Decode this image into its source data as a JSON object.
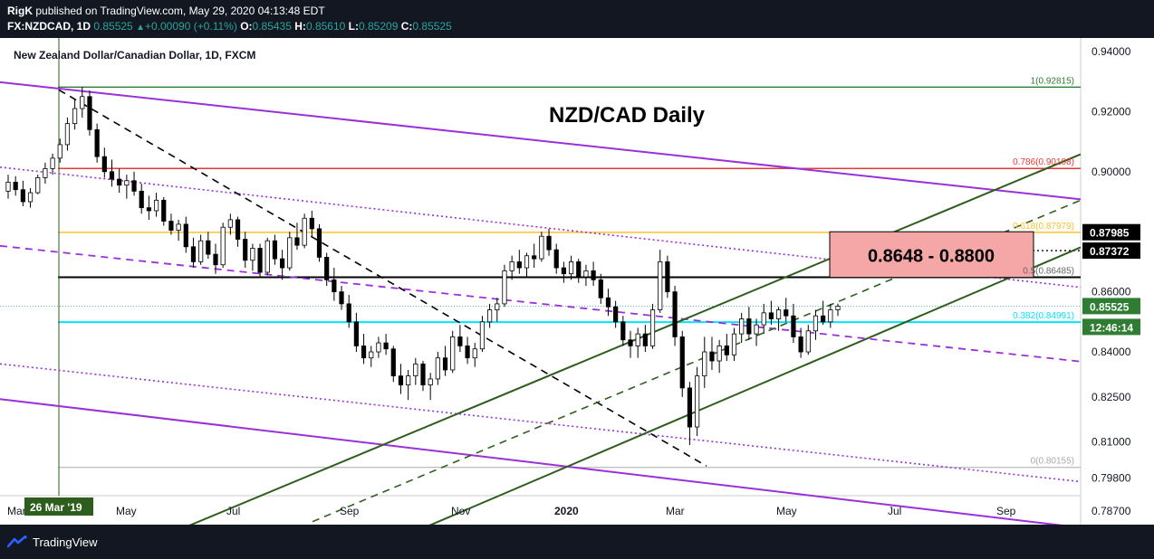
{
  "header": {
    "author": "RigK",
    "published": "published on TradingView.com, May 29, 2020 04:13:48 EDT",
    "symbol": "FX:NZDCAD, 1D",
    "last": "0.85525",
    "change": "+0.00090 (+0.11%)",
    "o_label": "O:",
    "o_value": "0.85435",
    "h_label": "H:",
    "h_value": "0.85610",
    "l_label": "L:",
    "l_value": "0.85209",
    "c_label": "C:",
    "c_value": "0.85525"
  },
  "footer": {
    "brand": "TradingView"
  },
  "colors": {
    "background": "#ffffff",
    "frame": "#131722",
    "green_channel": "#2e5e1e",
    "purple_channel": "#9b30d9",
    "fib_top": "#2e7d32",
    "fib_786": "#e53935",
    "fib_618": "#fbc02d",
    "fib_382": "#00e5ff",
    "zone": "#f5a6a6"
  },
  "chart_data": {
    "type": "candlestick",
    "title": "New Zealand Dollar/Canadian Dollar, 1D, FXCM",
    "annotation": "NZD/CAD Daily",
    "zone_label": "0.8648 - 0.8800",
    "ylim": [
      0.7825,
      0.9445
    ],
    "y_ticks": [
      "0.94000",
      "0.92000",
      "0.90000",
      "0.87985",
      "0.87372",
      "0.86000",
      "0.85525",
      "0.84000",
      "0.82500",
      "0.81000",
      "0.79800",
      "0.78700"
    ],
    "y_tick_values": [
      0.94,
      0.92,
      0.9,
      0.87985,
      0.87372,
      0.86,
      0.85525,
      0.84,
      0.825,
      0.81,
      0.798,
      0.787
    ],
    "x_ticks": [
      "Mar",
      "26 Mar '19",
      "May",
      "Jul",
      "Sep",
      "Nov",
      "2020",
      "Mar",
      "May",
      "Jul",
      "Sep"
    ],
    "price_label": "0.85525",
    "countdown_label": "12:46:14",
    "fib_levels": [
      {
        "label": "1(0.92815)",
        "value": 0.92815
      },
      {
        "label": "0.786(0.90108)",
        "value": 0.90108
      },
      {
        "label": "0.618(0.87979)",
        "value": 0.87979
      },
      {
        "label": "0.5(0.86485)",
        "value": 0.86485
      },
      {
        "label": "0.382(0.84991)",
        "value": 0.84991
      },
      {
        "label": "0(0.80155)",
        "value": 0.80155
      }
    ],
    "series": [
      {
        "values": [
          [
            0.8935,
            0.899,
            0.891,
            0.8965
          ],
          [
            0.8965,
            0.8985,
            0.892,
            0.894
          ],
          [
            0.894,
            0.897,
            0.8885,
            0.89
          ],
          [
            0.89,
            0.8945,
            0.888,
            0.893
          ],
          [
            0.893,
            0.899,
            0.8925,
            0.898
          ],
          [
            0.898,
            0.903,
            0.896,
            0.901
          ],
          [
            0.901,
            0.906,
            0.899,
            0.9045
          ],
          [
            0.9045,
            0.911,
            0.903,
            0.909
          ],
          [
            0.909,
            0.918,
            0.907,
            0.916
          ],
          [
            0.916,
            0.924,
            0.914,
            0.921
          ],
          [
            0.921,
            0.9282,
            0.918,
            0.925
          ],
          [
            0.925,
            0.927,
            0.912,
            0.914
          ],
          [
            0.914,
            0.916,
            0.903,
            0.905
          ],
          [
            0.905,
            0.908,
            0.898,
            0.9
          ],
          [
            0.9,
            0.904,
            0.895,
            0.8975
          ],
          [
            0.8975,
            0.901,
            0.893,
            0.8955
          ],
          [
            0.8955,
            0.899,
            0.891,
            0.897
          ],
          [
            0.897,
            0.9,
            0.892,
            0.8935
          ],
          [
            0.8935,
            0.896,
            0.886,
            0.888
          ],
          [
            0.888,
            0.892,
            0.884,
            0.887
          ],
          [
            0.887,
            0.893,
            0.885,
            0.8905
          ],
          [
            0.8905,
            0.8915,
            0.882,
            0.8835
          ],
          [
            0.8835,
            0.886,
            0.879,
            0.8805
          ],
          [
            0.8805,
            0.884,
            0.877,
            0.8825
          ],
          [
            0.8825,
            0.885,
            0.873,
            0.875
          ],
          [
            0.875,
            0.878,
            0.868,
            0.87
          ],
          [
            0.87,
            0.879,
            0.869,
            0.877
          ],
          [
            0.877,
            0.88,
            0.871,
            0.8725
          ],
          [
            0.8725,
            0.876,
            0.866,
            0.869
          ],
          [
            0.869,
            0.883,
            0.868,
            0.8815
          ],
          [
            0.8815,
            0.886,
            0.879,
            0.884
          ],
          [
            0.884,
            0.885,
            0.875,
            0.8775
          ],
          [
            0.8775,
            0.88,
            0.868,
            0.8705
          ],
          [
            0.8705,
            0.876,
            0.867,
            0.8745
          ],
          [
            0.8745,
            0.876,
            0.865,
            0.8665
          ],
          [
            0.8665,
            0.878,
            0.8655,
            0.877
          ],
          [
            0.877,
            0.879,
            0.869,
            0.871
          ],
          [
            0.871,
            0.874,
            0.864,
            0.868
          ],
          [
            0.868,
            0.88,
            0.867,
            0.878
          ],
          [
            0.878,
            0.883,
            0.874,
            0.8755
          ],
          [
            0.8755,
            0.886,
            0.8745,
            0.8845
          ],
          [
            0.8845,
            0.887,
            0.878,
            0.881
          ],
          [
            0.881,
            0.8825,
            0.87,
            0.8715
          ],
          [
            0.8715,
            0.873,
            0.862,
            0.864
          ],
          [
            0.864,
            0.868,
            0.857,
            0.86
          ],
          [
            0.86,
            0.862,
            0.854,
            0.856
          ],
          [
            0.856,
            0.859,
            0.848,
            0.85
          ],
          [
            0.85,
            0.853,
            0.84,
            0.842
          ],
          [
            0.842,
            0.846,
            0.836,
            0.838
          ],
          [
            0.838,
            0.842,
            0.835,
            0.84
          ],
          [
            0.84,
            0.845,
            0.838,
            0.843
          ],
          [
            0.843,
            0.846,
            0.839,
            0.841
          ],
          [
            0.841,
            0.842,
            0.83,
            0.832
          ],
          [
            0.832,
            0.836,
            0.826,
            0.829
          ],
          [
            0.829,
            0.834,
            0.824,
            0.832
          ],
          [
            0.832,
            0.838,
            0.829,
            0.836
          ],
          [
            0.836,
            0.837,
            0.827,
            0.829
          ],
          [
            0.829,
            0.833,
            0.824,
            0.831
          ],
          [
            0.831,
            0.84,
            0.829,
            0.838
          ],
          [
            0.838,
            0.842,
            0.832,
            0.834
          ],
          [
            0.834,
            0.847,
            0.833,
            0.845
          ],
          [
            0.845,
            0.849,
            0.84,
            0.842
          ],
          [
            0.842,
            0.845,
            0.836,
            0.838
          ],
          [
            0.838,
            0.843,
            0.835,
            0.841
          ],
          [
            0.841,
            0.852,
            0.84,
            0.85
          ],
          [
            0.85,
            0.856,
            0.848,
            0.854
          ],
          [
            0.854,
            0.858,
            0.85,
            0.856
          ],
          [
            0.856,
            0.869,
            0.855,
            0.867
          ],
          [
            0.867,
            0.872,
            0.864,
            0.87
          ],
          [
            0.87,
            0.874,
            0.866,
            0.868
          ],
          [
            0.868,
            0.873,
            0.865,
            0.872
          ],
          [
            0.872,
            0.876,
            0.868,
            0.871
          ],
          [
            0.871,
            0.88,
            0.87,
            0.8785
          ],
          [
            0.8785,
            0.881,
            0.872,
            0.874
          ],
          [
            0.874,
            0.876,
            0.866,
            0.868
          ],
          [
            0.868,
            0.87,
            0.863,
            0.866
          ],
          [
            0.866,
            0.872,
            0.864,
            0.87
          ],
          [
            0.87,
            0.871,
            0.863,
            0.865
          ],
          [
            0.865,
            0.869,
            0.862,
            0.867
          ],
          [
            0.867,
            0.87,
            0.862,
            0.864
          ],
          [
            0.864,
            0.866,
            0.856,
            0.858
          ],
          [
            0.858,
            0.861,
            0.852,
            0.855
          ],
          [
            0.855,
            0.857,
            0.848,
            0.85
          ],
          [
            0.85,
            0.852,
            0.842,
            0.844
          ],
          [
            0.844,
            0.847,
            0.838,
            0.842
          ],
          [
            0.842,
            0.848,
            0.838,
            0.846
          ],
          [
            0.846,
            0.849,
            0.84,
            0.842
          ],
          [
            0.842,
            0.856,
            0.841,
            0.854
          ],
          [
            0.854,
            0.874,
            0.853,
            0.87
          ],
          [
            0.87,
            0.872,
            0.858,
            0.86
          ],
          [
            0.86,
            0.862,
            0.842,
            0.845
          ],
          [
            0.845,
            0.847,
            0.825,
            0.828
          ],
          [
            0.828,
            0.83,
            0.809,
            0.815
          ],
          [
            0.815,
            0.835,
            0.812,
            0.832
          ],
          [
            0.832,
            0.845,
            0.828,
            0.84
          ],
          [
            0.84,
            0.845,
            0.834,
            0.837
          ],
          [
            0.837,
            0.844,
            0.833,
            0.842
          ],
          [
            0.842,
            0.846,
            0.837,
            0.839
          ],
          [
            0.839,
            0.848,
            0.837,
            0.846
          ],
          [
            0.846,
            0.853,
            0.843,
            0.851
          ],
          [
            0.851,
            0.855,
            0.844,
            0.846
          ],
          [
            0.846,
            0.851,
            0.842,
            0.849
          ],
          [
            0.849,
            0.856,
            0.846,
            0.853
          ],
          [
            0.853,
            0.857,
            0.849,
            0.851
          ],
          [
            0.851,
            0.855,
            0.847,
            0.854
          ],
          [
            0.854,
            0.858,
            0.85,
            0.852
          ],
          [
            0.852,
            0.856,
            0.843,
            0.845
          ],
          [
            0.845,
            0.848,
            0.838,
            0.84
          ],
          [
            0.84,
            0.849,
            0.839,
            0.847
          ],
          [
            0.847,
            0.854,
            0.844,
            0.852
          ],
          [
            0.852,
            0.857,
            0.849,
            0.85
          ],
          [
            0.85,
            0.856,
            0.848,
            0.854
          ],
          [
            0.854,
            0.8561,
            0.852,
            0.8552
          ]
        ]
      }
    ]
  }
}
